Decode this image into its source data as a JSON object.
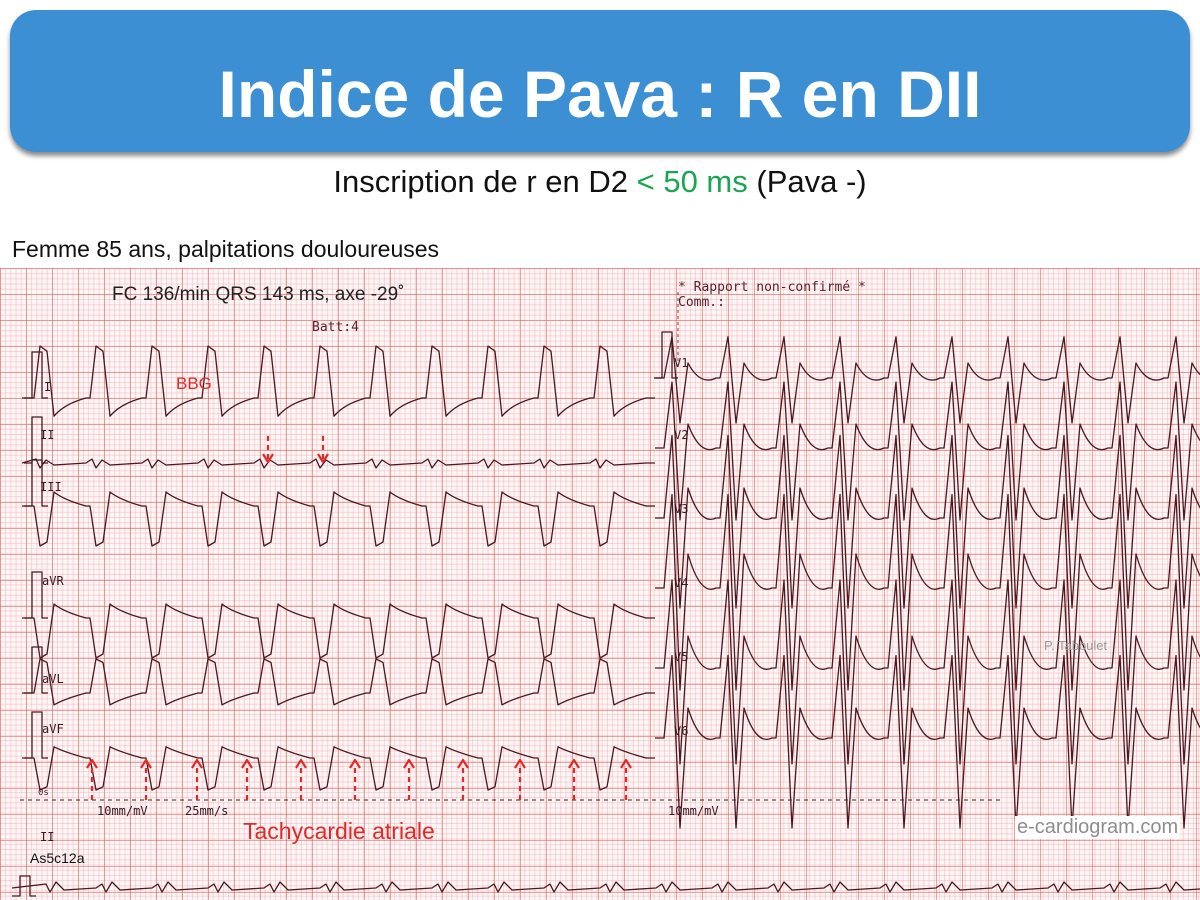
{
  "title": "Indice de Pava : R en DII",
  "subtitle": {
    "prefix": "Inscription de r en D2 ",
    "highlight": "< 50 ms",
    "suffix": " (Pava -)",
    "highlight_color": "#1aa552"
  },
  "patient": "Femme 85 ans, palpitations douloureuses",
  "ecg": {
    "measurements": "FC 136/min  QRS 143 ms, axe -29˚",
    "battery": "Batt:4",
    "report_line1": "* Rapport non-confirmé *",
    "report_line2": "Comm.:",
    "annotation_bbg": "BBG",
    "annotation_tachycardia": "Tachycardie atriale",
    "leads_left": [
      "I",
      "II",
      "III",
      "aVR",
      "aVL",
      "aVF"
    ],
    "leads_right": [
      "V1",
      "V2",
      "V3",
      "V4",
      "V5",
      "V6"
    ],
    "rhythm_lead": "II",
    "scale_gain": "10mm/mV",
    "scale_speed": "25mm/s",
    "scale_gain_right": "10mm/mV",
    "time_marker": "0s",
    "author": "P. Taboulet",
    "website": "e-cardiogram.com",
    "case_code": "As5c12a",
    "annotation_color": "#e02a2a",
    "trace_color": "#4a1820"
  }
}
